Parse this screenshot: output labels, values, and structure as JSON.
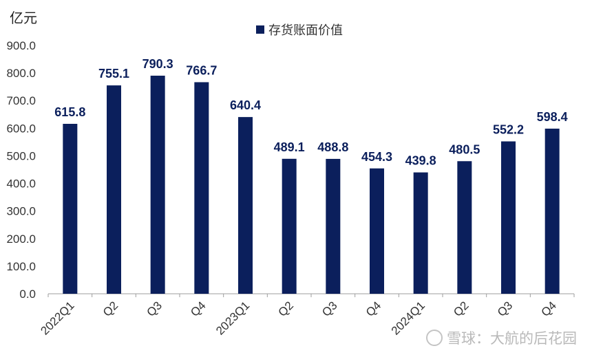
{
  "unit": "亿元",
  "watermark": "雪球：大航的后花园",
  "colors": {
    "bar": "#0b1f5c",
    "axis": "#9e9e9e",
    "tick": "#333333",
    "label": "#0b1f5c"
  },
  "chart_data": {
    "type": "bar",
    "title": "",
    "xlabel": "",
    "ylabel": "亿元",
    "ylim": [
      0,
      900
    ],
    "yticks": [
      "0.0",
      "100.0",
      "200.0",
      "300.0",
      "400.0",
      "500.0",
      "600.0",
      "700.0",
      "800.0",
      "900.0"
    ],
    "grid": false,
    "legend_position": "top-center",
    "categories": [
      "2022Q1",
      "Q2",
      "Q3",
      "Q4",
      "2023Q1",
      "Q2",
      "Q3",
      "Q4",
      "2024Q1",
      "Q2",
      "Q3",
      "Q4"
    ],
    "series": [
      {
        "name": "存货账面价值",
        "values": [
          615.8,
          755.1,
          790.3,
          766.7,
          640.4,
          489.1,
          488.8,
          454.3,
          439.8,
          480.5,
          552.2,
          598.4
        ],
        "labels": [
          "615.8",
          "755.1",
          "790.3",
          "766.7",
          "640.4",
          "489.1",
          "488.8",
          "454.3",
          "439.8",
          "480.5",
          "552.2",
          "598.4"
        ]
      }
    ]
  }
}
